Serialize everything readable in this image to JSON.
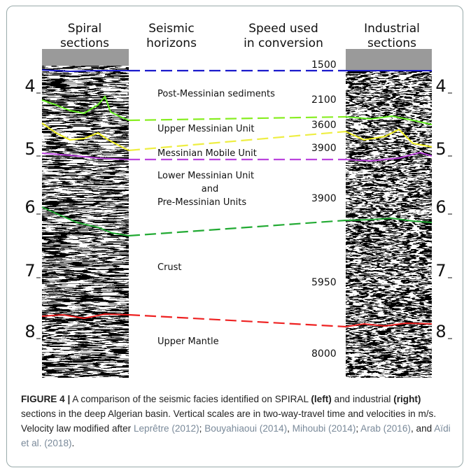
{
  "figure": {
    "headers": [
      [
        "Spiral",
        "sections"
      ],
      [
        "Seismic",
        "horizons"
      ],
      [
        "Speed used",
        "in conversion"
      ],
      [
        "Industrial",
        "sections"
      ]
    ],
    "left_scale": [
      "4",
      "5",
      "6",
      "7",
      "8"
    ],
    "right_scale": [
      "4",
      "5",
      "6",
      "7",
      "8"
    ],
    "horizons": [
      "Post-Messinian sediments",
      "Upper Messinian Unit",
      "Messinian Mobile Unit",
      "Lower Messinian Unit",
      "and",
      "Pre-Messinian Units",
      "Crust",
      "Upper Mantle"
    ],
    "speeds": [
      "1500",
      "2100",
      "3600",
      "3900",
      "3900",
      "5950",
      "8000"
    ]
  },
  "caption": {
    "label": "FIGURE 4 |",
    "parts": [
      " A comparison of the seismic facies identified on SPIRAL ",
      "(left)",
      " and industrial ",
      "(right)",
      " sections in the deep Algerian basin. Vertical scales are in two-way-travel time and velocities in m/s. Velocity law modified after "
    ],
    "citations": [
      "Leprêtre (2012)",
      "Bouyahiaoui (2014)",
      "Mihoubi (2014)",
      "Arab (2016)",
      "Aïdi et al. (2018)"
    ],
    "separators": [
      "; ",
      ", ",
      "; ",
      ", and ",
      "."
    ]
  }
}
